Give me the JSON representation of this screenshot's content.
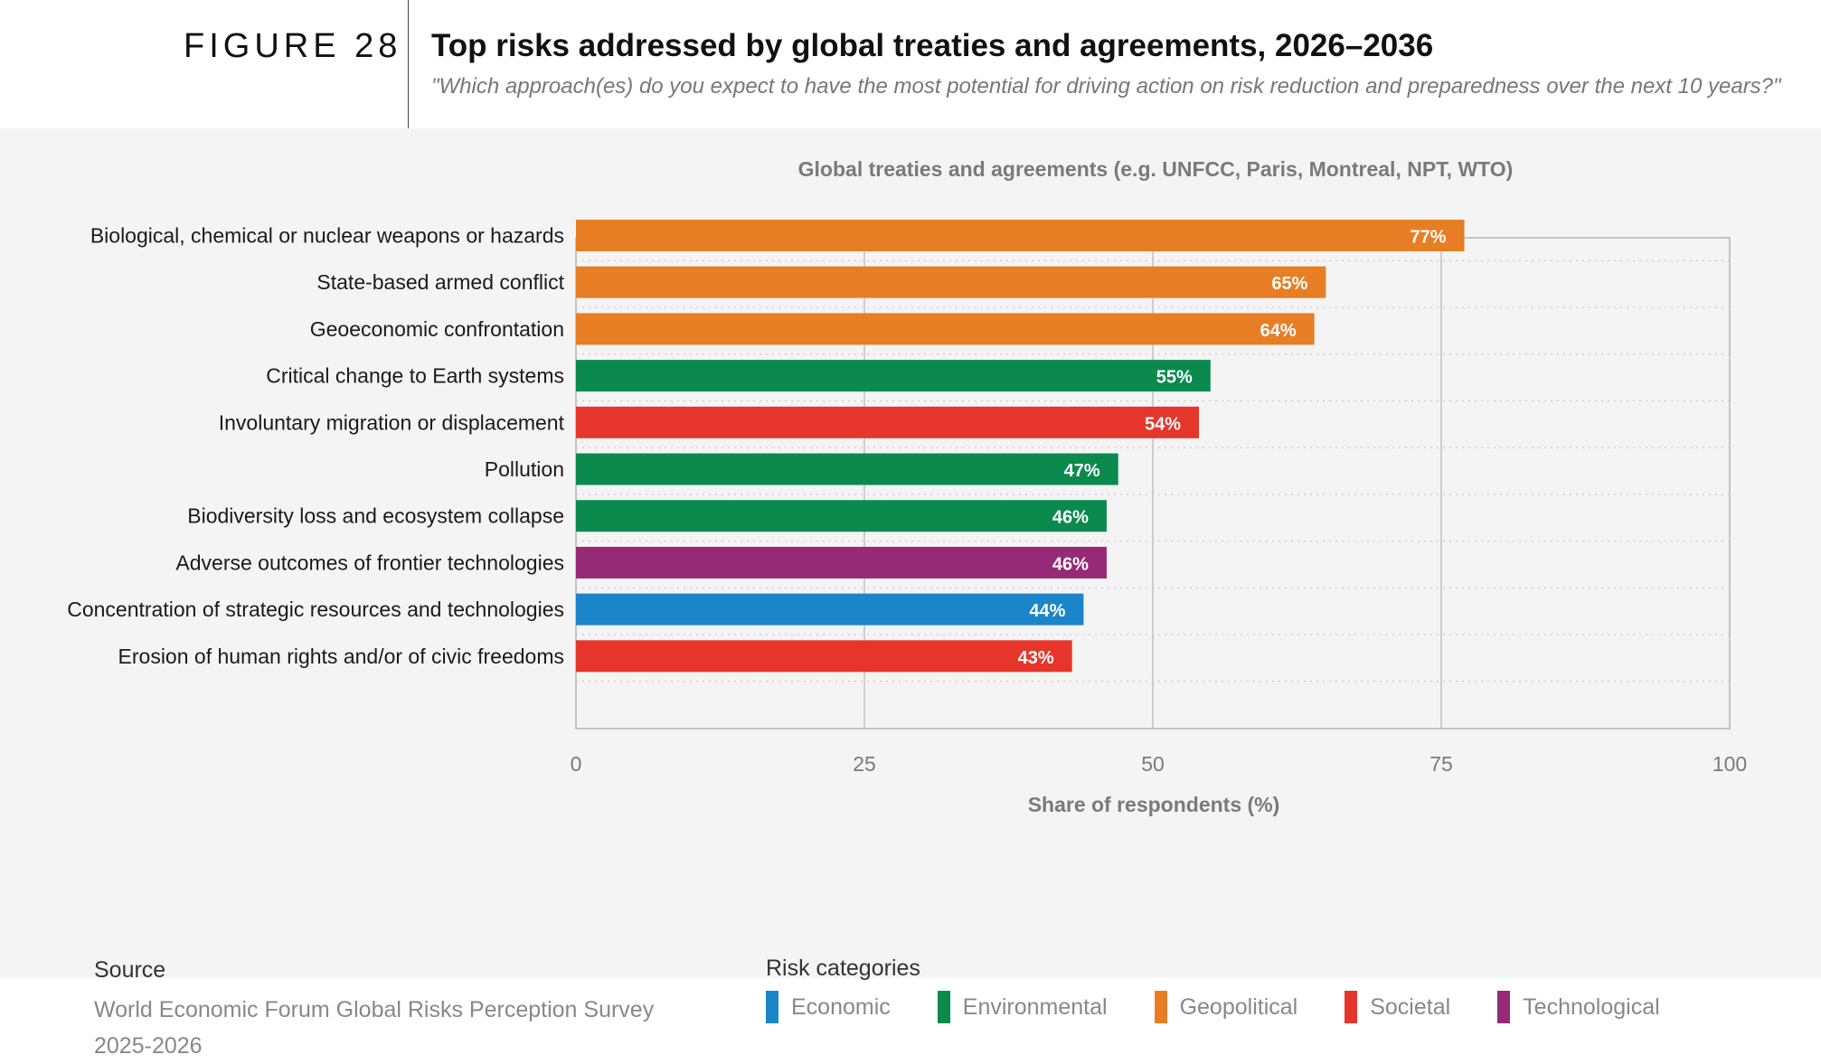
{
  "header": {
    "figure_label": "FIGURE 28",
    "title": "Top risks addressed by global treaties and agreements, 2026–2036",
    "subtitle": "\"Which approach(es) do you expect to have the most potential for driving action on risk reduction and preparedness over the next 10 years?\""
  },
  "colors": {
    "Economic": "#1a85c8",
    "Environmental": "#0b8a4e",
    "Geopolitical": "#e87e24",
    "Societal": "#e6352b",
    "Technological": "#962a77"
  },
  "chart_data": {
    "type": "bar",
    "orientation": "horizontal",
    "title": "Global treaties and agreements (e.g. UNFCC, Paris, Montreal, NPT, WTO)",
    "xlabel": "Share of respondents (%)",
    "ylabel": "",
    "xlim": [
      0,
      100
    ],
    "xticks": [
      0,
      25,
      50,
      75,
      100
    ],
    "grid": "vertical",
    "categories": [
      "Biological, chemical or nuclear weapons or hazards",
      "State-based armed conflict",
      "Geoeconomic confrontation",
      "Critical change to Earth systems",
      "Involuntary migration or displacement",
      "Pollution",
      "Biodiversity loss and ecosystem collapse",
      "Adverse outcomes of frontier technologies",
      "Concentration of strategic resources and technologies",
      "Erosion of human rights and/or of civic freedoms"
    ],
    "values": [
      77,
      65,
      64,
      55,
      54,
      47,
      46,
      46,
      44,
      43
    ],
    "data_labels": [
      "77%",
      "65%",
      "64%",
      "55%",
      "54%",
      "47%",
      "46%",
      "46%",
      "44%",
      "43%"
    ],
    "bar_categories": [
      "Geopolitical",
      "Geopolitical",
      "Geopolitical",
      "Environmental",
      "Societal",
      "Environmental",
      "Environmental",
      "Technological",
      "Economic",
      "Societal"
    ]
  },
  "footer": {
    "source_label": "Source",
    "source_text": "World Economic Forum Global Risks Perception Survey 2025-2026",
    "legend_label": "Risk categories",
    "legend": [
      "Economic",
      "Environmental",
      "Geopolitical",
      "Societal",
      "Technological"
    ]
  }
}
